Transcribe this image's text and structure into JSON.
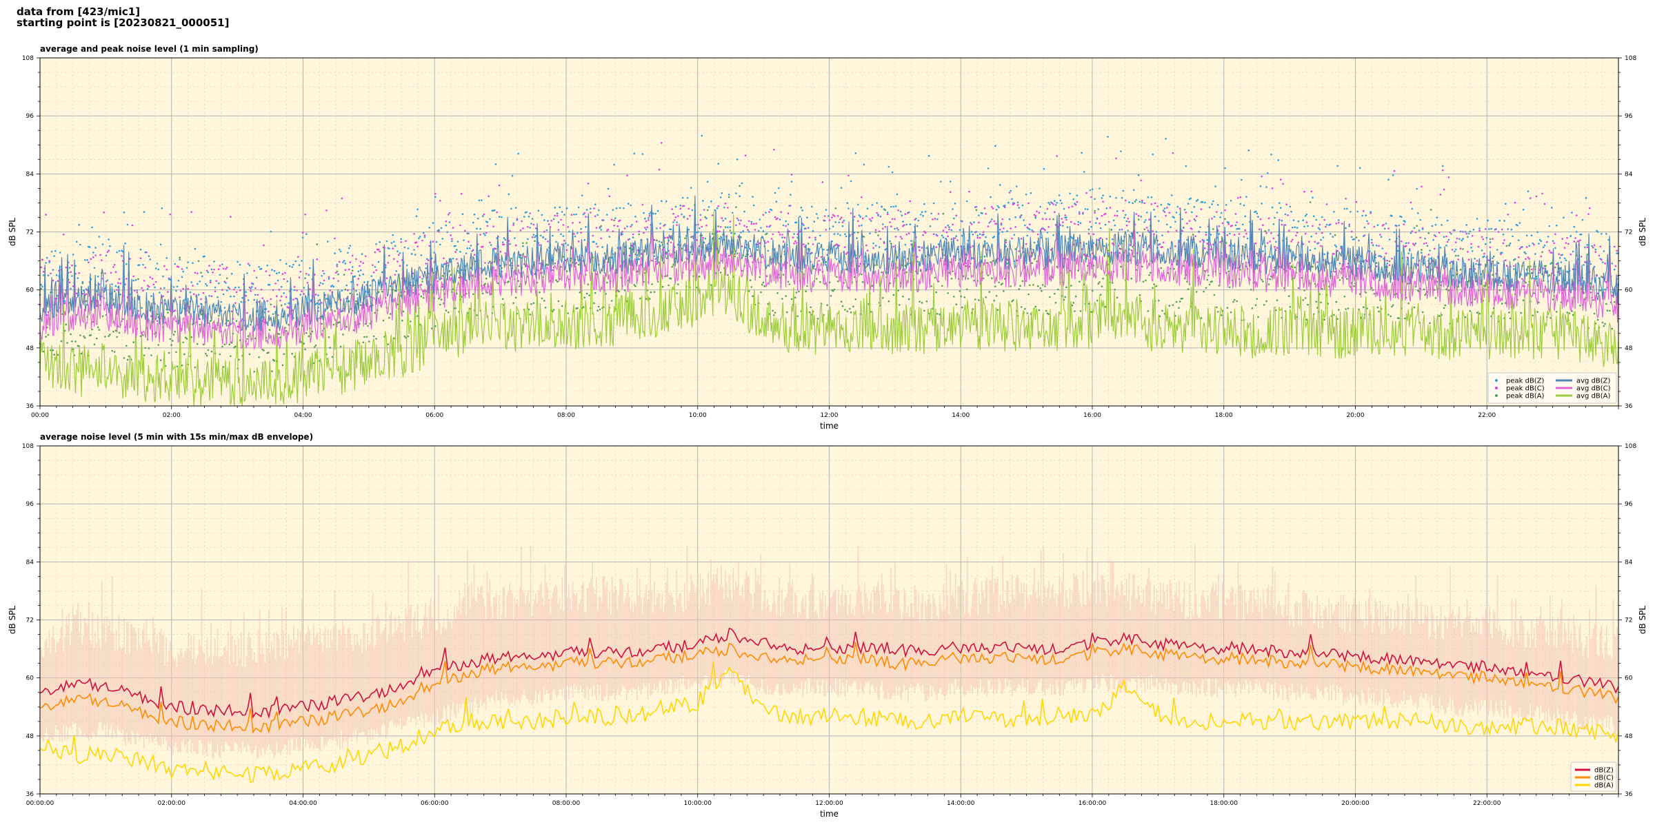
{
  "header": {
    "line1": "data from [423/mic1]",
    "line2": "starting point is [20230821_000051]"
  },
  "colors": {
    "plot_bg": "#fff6dc",
    "grid_major": "#b4b4b4",
    "grid_minor": "#dcd6c2",
    "dbz": "#4f86b6",
    "dbc": "#e066d8",
    "dba": "#9ccc3c",
    "dbz_p": "#2e9fd8",
    "dbc_p": "#e040e0",
    "dba_p": "#4fa054",
    "z2": "#d0103a",
    "c2": "#ff8c00",
    "a2": "#ffd700",
    "env": "#f2c0b0"
  },
  "chart_data": [
    {
      "type": "line",
      "title": "average and peak noise level (1 min sampling)",
      "xlabel": "time",
      "ylabel": "dB SPL",
      "ylabel_right": "dB SPL",
      "xlim": [
        0,
        24
      ],
      "ylim": [
        36,
        108
      ],
      "yticks": [
        36,
        48,
        60,
        72,
        84,
        96,
        108
      ],
      "xticks": [
        0,
        2,
        4,
        6,
        8,
        10,
        12,
        14,
        16,
        18,
        20,
        22
      ],
      "xtick_labels": [
        "00:00",
        "02:00",
        "04:00",
        "06:00",
        "08:00",
        "10:00",
        "12:00",
        "14:00",
        "16:00",
        "18:00",
        "20:00",
        "22:00"
      ],
      "grid": true,
      "legend_position": "lower-right",
      "legend_entries": [
        "peak dB(Z)",
        "peak dB(C)",
        "peak dB(A)",
        "avg dB(Z)",
        "avg dB(C)",
        "avg dB(A)"
      ],
      "x": [
        0,
        0.5,
        1,
        1.5,
        2,
        2.5,
        3,
        3.5,
        4,
        4.5,
        5,
        5.5,
        6,
        6.5,
        7,
        7.5,
        8,
        8.5,
        9,
        9.5,
        10,
        10.5,
        11,
        11.5,
        12,
        12.5,
        13,
        13.5,
        14,
        14.5,
        15,
        15.5,
        16,
        16.5,
        17,
        17.5,
        18,
        18.5,
        19,
        19.5,
        20,
        20.5,
        21,
        21.5,
        22,
        22.5,
        23,
        23.5,
        24
      ],
      "series": [
        {
          "name": "avg dB(Z)",
          "values": [
            55,
            57,
            57,
            55,
            54,
            54,
            53,
            53,
            54,
            55,
            57,
            59,
            61,
            63,
            64,
            64,
            65,
            65,
            65,
            66,
            67,
            68,
            66,
            65,
            65,
            65,
            65,
            65,
            66,
            66,
            66,
            66,
            67,
            67,
            67,
            66,
            66,
            65,
            65,
            64,
            64,
            63,
            63,
            62,
            62,
            61,
            61,
            60,
            58
          ]
        },
        {
          "name": "avg dB(C)",
          "values": [
            53,
            55,
            55,
            53,
            52,
            52,
            51,
            51,
            52,
            53,
            55,
            57,
            59,
            61,
            62,
            62,
            63,
            63,
            63,
            64,
            65,
            66,
            64,
            63,
            63,
            63,
            63,
            63,
            64,
            64,
            64,
            64,
            65,
            65,
            65,
            64,
            64,
            63,
            63,
            62,
            62,
            61,
            61,
            60,
            60,
            59,
            59,
            58,
            56
          ]
        },
        {
          "name": "avg dB(A)",
          "values": [
            45,
            43,
            44,
            42,
            42,
            41,
            41,
            41,
            42,
            43,
            45,
            47,
            50,
            52,
            53,
            52,
            53,
            53,
            55,
            56,
            58,
            60,
            53,
            52,
            52,
            53,
            52,
            52,
            53,
            53,
            52,
            53,
            53,
            56,
            52,
            52,
            52,
            51,
            52,
            51,
            51,
            52,
            51,
            51,
            51,
            51,
            51,
            50,
            49
          ]
        },
        {
          "name": "peak dB(Z)",
          "values": [
            62,
            64,
            64,
            62,
            61,
            61,
            60,
            60,
            61,
            62,
            64,
            66,
            68,
            70,
            71,
            71,
            72,
            72,
            72,
            73,
            74,
            75,
            73,
            72,
            72,
            72,
            72,
            72,
            73,
            74,
            74,
            74,
            75,
            75,
            74,
            73,
            73,
            72,
            72,
            71,
            71,
            70,
            70,
            69,
            69,
            68,
            68,
            67,
            65
          ]
        },
        {
          "name": "peak dB(C)",
          "values": [
            60,
            62,
            62,
            60,
            59,
            59,
            58,
            58,
            59,
            60,
            62,
            64,
            66,
            68,
            69,
            69,
            70,
            70,
            70,
            71,
            72,
            73,
            71,
            70,
            70,
            70,
            70,
            70,
            71,
            72,
            72,
            72,
            73,
            73,
            72,
            71,
            71,
            70,
            70,
            69,
            69,
            68,
            68,
            67,
            67,
            66,
            66,
            65,
            63
          ]
        },
        {
          "name": "peak dB(A)",
          "values": [
            52,
            52,
            52,
            50,
            50,
            49,
            49,
            49,
            50,
            51,
            53,
            55,
            58,
            60,
            61,
            60,
            61,
            61,
            63,
            64,
            66,
            68,
            61,
            60,
            60,
            61,
            60,
            60,
            61,
            61,
            60,
            61,
            61,
            64,
            60,
            60,
            60,
            59,
            60,
            59,
            59,
            60,
            59,
            59,
            59,
            59,
            59,
            58,
            57
          ]
        }
      ]
    },
    {
      "type": "line",
      "title": "average noise level (5 min with 15s min/max dB envelope)",
      "xlabel": "time",
      "ylabel": "dB SPL",
      "ylabel_right": "dB SPL",
      "xlim": [
        0,
        24
      ],
      "ylim": [
        36,
        108
      ],
      "yticks": [
        36,
        48,
        60,
        72,
        84,
        96,
        108
      ],
      "xticks": [
        0,
        2,
        4,
        6,
        8,
        10,
        12,
        14,
        16,
        18,
        20,
        22
      ],
      "xtick_labels": [
        "00:00:00",
        "02:00:00",
        "04:00:00",
        "06:00:00",
        "08:00:00",
        "10:00:00",
        "12:00:00",
        "14:00:00",
        "16:00:00",
        "18:00:00",
        "20:00:00",
        "22:00:00"
      ],
      "grid": true,
      "legend_position": "lower-right",
      "legend_entries": [
        "dB(Z)",
        "dB(C)",
        "dB(A)"
      ],
      "x": [
        0,
        0.5,
        1,
        1.5,
        2,
        2.5,
        3,
        3.5,
        4,
        4.5,
        5,
        5.5,
        6,
        6.5,
        7,
        7.5,
        8,
        8.5,
        9,
        9.5,
        10,
        10.5,
        11,
        11.5,
        12,
        12.5,
        13,
        13.5,
        14,
        14.5,
        15,
        15.5,
        16,
        16.5,
        17,
        17.5,
        18,
        18.5,
        19,
        19.5,
        20,
        20.5,
        21,
        21.5,
        22,
        22.5,
        23,
        23.5,
        24
      ],
      "series": [
        {
          "name": "dB(Z)",
          "values": [
            56,
            58,
            57,
            55,
            53,
            52,
            52,
            52,
            53,
            54,
            55,
            57,
            60,
            62,
            63,
            63,
            64,
            64,
            64,
            65,
            66,
            68,
            66,
            65,
            65,
            65,
            65,
            64,
            65,
            65,
            65,
            65,
            66,
            67,
            66,
            65,
            65,
            65,
            64,
            64,
            63,
            63,
            62,
            61,
            61,
            60,
            59,
            58,
            57
          ]
        },
        {
          "name": "dB(C)",
          "values": [
            54,
            56,
            55,
            53,
            51,
            50,
            50,
            50,
            51,
            52,
            53,
            55,
            58,
            61,
            62,
            62,
            63,
            63,
            63,
            64,
            65,
            66,
            64,
            64,
            64,
            64,
            63,
            63,
            64,
            64,
            64,
            64,
            65,
            66,
            65,
            64,
            64,
            64,
            63,
            63,
            62,
            62,
            61,
            60,
            60,
            59,
            58,
            57,
            56
          ]
        },
        {
          "name": "dB(A)",
          "values": [
            46,
            44,
            44,
            43,
            41,
            41,
            40,
            40,
            41,
            42,
            44,
            46,
            49,
            51,
            51,
            51,
            52,
            52,
            52,
            54,
            55,
            62,
            53,
            52,
            52,
            52,
            51,
            51,
            52,
            52,
            51,
            52,
            52,
            58,
            52,
            51,
            51,
            51,
            51,
            51,
            51,
            51,
            51,
            50,
            50,
            50,
            50,
            49,
            48
          ]
        },
        {
          "name": "max envelope",
          "values": [
            66,
            70,
            70,
            68,
            66,
            66,
            66,
            66,
            67,
            68,
            69,
            71,
            72,
            76,
            76,
            76,
            77,
            77,
            77,
            77,
            78,
            80,
            77,
            76,
            76,
            76,
            76,
            75,
            76,
            77,
            78,
            78,
            78,
            78,
            77,
            76,
            76,
            75,
            74,
            74,
            73,
            73,
            72,
            71,
            71,
            70,
            69,
            68,
            67
          ]
        },
        {
          "name": "min envelope",
          "values": [
            50,
            51,
            51,
            49,
            48,
            47,
            47,
            47,
            48,
            49,
            50,
            52,
            54,
            56,
            58,
            58,
            59,
            59,
            59,
            60,
            61,
            62,
            60,
            60,
            60,
            60,
            59,
            59,
            60,
            60,
            60,
            60,
            61,
            61,
            61,
            60,
            60,
            60,
            59,
            59,
            58,
            58,
            57,
            56,
            56,
            55,
            54,
            53,
            52
          ]
        }
      ]
    }
  ]
}
